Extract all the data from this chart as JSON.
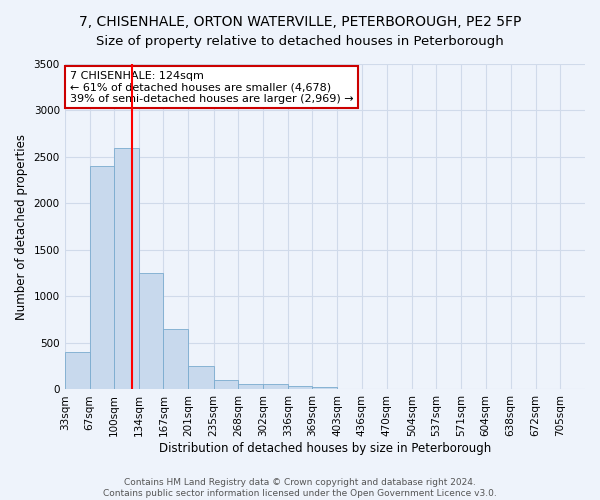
{
  "title": "7, CHISENHALE, ORTON WATERVILLE, PETERBOROUGH, PE2 5FP",
  "subtitle": "Size of property relative to detached houses in Peterborough",
  "xlabel": "Distribution of detached houses by size in Peterborough",
  "ylabel": "Number of detached properties",
  "bins": [
    33,
    67,
    100,
    134,
    167,
    201,
    235,
    268,
    302,
    336,
    369,
    403,
    436,
    470,
    504,
    537,
    571,
    604,
    638,
    672,
    705
  ],
  "counts": [
    400,
    2400,
    2600,
    1250,
    650,
    250,
    100,
    60,
    60,
    40,
    30,
    0,
    0,
    0,
    0,
    0,
    0,
    0,
    0,
    0
  ],
  "bar_color": "#c8d9ed",
  "bar_edge_color": "#7aabcf",
  "bg_color": "#eef3fb",
  "grid_color": "#d0daea",
  "red_line_x": 124,
  "annotation_text": "7 CHISENHALE: 124sqm\n← 61% of detached houses are smaller (4,678)\n39% of semi-detached houses are larger (2,969) →",
  "annotation_box_color": "#ffffff",
  "annotation_box_edge": "#cc0000",
  "footnote": "Contains HM Land Registry data © Crown copyright and database right 2024.\nContains public sector information licensed under the Open Government Licence v3.0.",
  "ylim": [
    0,
    3500
  ],
  "yticks": [
    0,
    500,
    1000,
    1500,
    2000,
    2500,
    3000,
    3500
  ],
  "title_fontsize": 10,
  "subtitle_fontsize": 9.5,
  "axis_label_fontsize": 8.5,
  "tick_fontsize": 7.5,
  "annotation_fontsize": 8
}
